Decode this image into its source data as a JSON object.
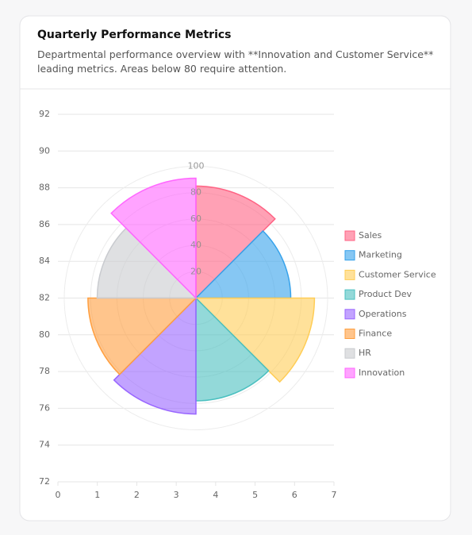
{
  "chart_data": {
    "type": "polarArea",
    "title": "Quarterly Performance Metrics",
    "subtitle": "Departmental performance overview with **Innovation and Customer Service** leading metrics. Areas below 80 require attention.",
    "categories": [
      "Sales",
      "Marketing",
      "Customer Service",
      "Product Dev",
      "Operations",
      "Finance",
      "HR",
      "Innovation"
    ],
    "values": [
      85,
      72,
      90,
      78,
      88,
      82,
      75,
      91
    ],
    "colors": [
      "#ff6384",
      "#36a2eb",
      "#ffcd56",
      "#4bc0c0",
      "#9966ff",
      "#ff9f40",
      "#c9cbcf",
      "#ff66ff"
    ],
    "rlim": [
      0,
      100
    ],
    "rticks": [
      20,
      40,
      60,
      80,
      100
    ],
    "xlim": [
      0,
      7
    ],
    "xticks": [
      0,
      1,
      2,
      3,
      4,
      5,
      6,
      7
    ],
    "ylim": [
      72,
      92
    ],
    "yticks": [
      72,
      74,
      76,
      78,
      80,
      82,
      84,
      86,
      88,
      90,
      92
    ],
    "grid": true,
    "legend": "right"
  }
}
